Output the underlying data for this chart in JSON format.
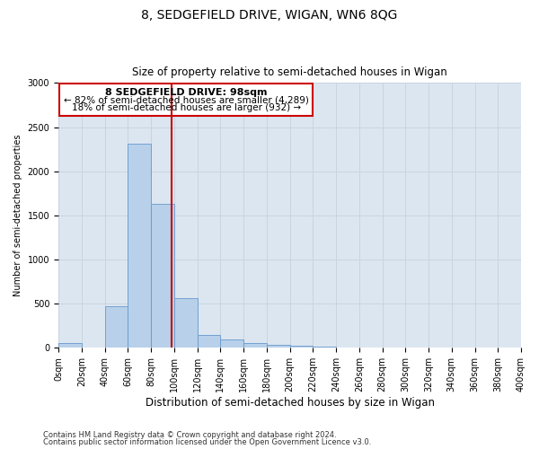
{
  "title": "8, SEDGEFIELD DRIVE, WIGAN, WN6 8QG",
  "subtitle": "Size of property relative to semi-detached houses in Wigan",
  "xlabel": "Distribution of semi-detached houses by size in Wigan",
  "ylabel": "Number of semi-detached properties",
  "footnote1": "Contains HM Land Registry data © Crown copyright and database right 2024.",
  "footnote2": "Contains public sector information licensed under the Open Government Licence v3.0.",
  "property_size": 98,
  "annotation_title": "8 SEDGEFIELD DRIVE: 98sqm",
  "annotation_line1": "← 82% of semi-detached houses are smaller (4,289)",
  "annotation_line2": "18% of semi-detached houses are larger (932) →",
  "bin_edges": [
    0,
    20,
    40,
    60,
    80,
    100,
    120,
    140,
    160,
    180,
    200,
    220,
    240,
    260,
    280,
    300,
    320,
    340,
    360,
    380,
    400
  ],
  "bar_heights": [
    50,
    5,
    475,
    2310,
    1630,
    560,
    150,
    90,
    50,
    30,
    20,
    10,
    5,
    3,
    2,
    1,
    1,
    0,
    0,
    0
  ],
  "bar_color": "#b8d0ea",
  "bar_edge_color": "#6699cc",
  "grid_color": "#c8d4e0",
  "bg_color": "#dce6f0",
  "vline_color": "#cc0000",
  "box_color": "#cc0000",
  "ylim": [
    0,
    3000
  ],
  "yticks": [
    0,
    500,
    1000,
    1500,
    2000,
    2500,
    3000
  ],
  "title_fontsize": 10,
  "subtitle_fontsize": 8.5,
  "xlabel_fontsize": 8.5,
  "ylabel_fontsize": 7,
  "tick_fontsize": 7,
  "footnote_fontsize": 6
}
